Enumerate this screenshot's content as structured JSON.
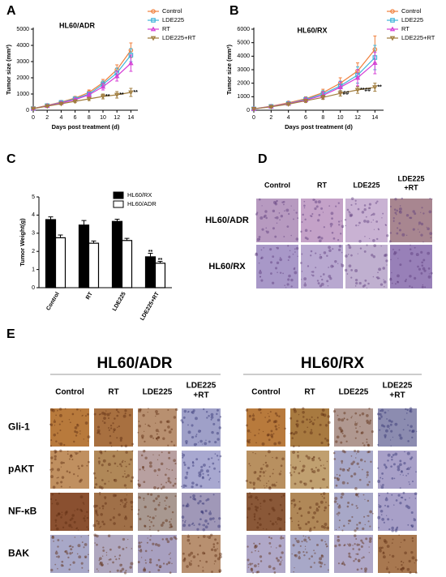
{
  "chart_data": [
    {
      "type": "line",
      "panel_label": "A",
      "title": "HL60/ADR",
      "x_label": "Days post  treatment (d)",
      "y_label": "Tumor size (mm³)",
      "x": [
        0,
        2,
        4,
        6,
        8,
        10,
        12,
        14
      ],
      "xlim": [
        0,
        15
      ],
      "xticks": [
        0,
        2,
        4,
        6,
        8,
        10,
        12,
        14
      ],
      "ylim": [
        0,
        5000
      ],
      "yticks": [
        0,
        1000,
        2000,
        3000,
        4000,
        5000
      ],
      "legend": "right",
      "series": [
        {
          "name": "Control",
          "color": "#f07f3c",
          "marker": "circle",
          "values": [
            100,
            300,
            500,
            750,
            1100,
            1700,
            2500,
            3700
          ],
          "errors": [
            20,
            50,
            80,
            100,
            150,
            200,
            300,
            450
          ]
        },
        {
          "name": "LDE225",
          "color": "#3fb3d9",
          "marker": "square",
          "values": [
            100,
            280,
            480,
            700,
            1000,
            1600,
            2300,
            3400
          ],
          "errors": [
            20,
            50,
            70,
            100,
            130,
            200,
            300,
            400
          ]
        },
        {
          "name": "RT",
          "color": "#d63fd6",
          "marker": "triangle-up",
          "values": [
            100,
            270,
            450,
            650,
            950,
            1450,
            2100,
            2900
          ],
          "errors": [
            20,
            40,
            70,
            90,
            120,
            200,
            300,
            500
          ]
        },
        {
          "name": "LDE225+RT",
          "color": "#a07c3c",
          "marker": "triangle-down",
          "values": [
            100,
            250,
            400,
            550,
            700,
            850,
            950,
            1100
          ],
          "errors": [
            20,
            40,
            60,
            80,
            100,
            150,
            200,
            250
          ]
        }
      ],
      "annotations": [
        {
          "x": 10,
          "y": 850,
          "text": "**"
        },
        {
          "x": 12,
          "y": 950,
          "text": "**"
        },
        {
          "x": 14,
          "y": 1100,
          "text": "**"
        }
      ]
    },
    {
      "type": "line",
      "panel_label": "B",
      "title": "HL60/RX",
      "x_label": "Days post  treatment (d)",
      "y_label": "Tumor size (mm³)",
      "x": [
        0,
        2,
        4,
        6,
        8,
        10,
        12,
        14
      ],
      "xlim": [
        0,
        15
      ],
      "xticks": [
        0,
        2,
        4,
        6,
        8,
        10,
        12,
        14
      ],
      "ylim": [
        0,
        6000
      ],
      "yticks": [
        0,
        1000,
        2000,
        3000,
        4000,
        5000,
        6000
      ],
      "legend": "right",
      "series": [
        {
          "name": "Control",
          "color": "#f07f3c",
          "marker": "circle",
          "values": [
            100,
            300,
            550,
            850,
            1300,
            2000,
            2900,
            4500
          ],
          "errors": [
            20,
            60,
            100,
            150,
            250,
            400,
            600,
            1000
          ]
        },
        {
          "name": "LDE225",
          "color": "#3fb3d9",
          "marker": "square",
          "values": [
            100,
            280,
            500,
            800,
            1200,
            1800,
            2600,
            3900
          ],
          "errors": [
            20,
            60,
            100,
            150,
            250,
            350,
            600,
            900
          ]
        },
        {
          "name": "RT",
          "color": "#d63fd6",
          "marker": "triangle-up",
          "values": [
            100,
            270,
            480,
            750,
            1100,
            1700,
            2400,
            3500
          ],
          "errors": [
            20,
            50,
            100,
            150,
            250,
            400,
            600,
            800
          ]
        },
        {
          "name": "LDE225+RT",
          "color": "#a07c3c",
          "marker": "triangle-down",
          "values": [
            100,
            250,
            450,
            700,
            950,
            1250,
            1500,
            1700
          ],
          "errors": [
            20,
            50,
            80,
            120,
            150,
            200,
            250,
            300
          ]
        }
      ],
      "annotations": [
        {
          "x": 10,
          "y": 1250,
          "text": "##"
        },
        {
          "x": 12,
          "y": 1500,
          "text": "**##"
        },
        {
          "x": 14,
          "y": 1700,
          "text": "**"
        }
      ]
    },
    {
      "type": "bar",
      "panel_label": "C",
      "y_label": "Tumor Weight(g)",
      "categories": [
        "Control",
        "RT",
        "LDE225",
        "LDE225+RT"
      ],
      "ylim": [
        0,
        5
      ],
      "yticks": [
        0,
        1,
        2,
        3,
        4,
        5
      ],
      "legend": "upper right",
      "series": [
        {
          "name": "HL60/RX",
          "color": "#000000",
          "values": [
            3.75,
            3.45,
            3.65,
            1.7
          ],
          "errors": [
            0.15,
            0.25,
            0.12,
            0.2
          ]
        },
        {
          "name": "HL60/ADR",
          "color": "#ffffff",
          "values": [
            2.75,
            2.45,
            2.6,
            1.35
          ],
          "errors": [
            0.15,
            0.12,
            0.12,
            0.1
          ]
        }
      ],
      "annotations": [
        {
          "x": "LDE225+RT",
          "series": "HL60/RX",
          "y": 1.95,
          "text": "**"
        },
        {
          "x": "LDE225+RT",
          "series": "HL60/ADR",
          "y": 1.5,
          "text": "**"
        }
      ]
    }
  ],
  "panel_d": {
    "label": "D",
    "columns": [
      [
        "Control"
      ],
      [
        "RT"
      ],
      [
        "LDE225"
      ],
      [
        "LDE225",
        "+RT"
      ]
    ],
    "rows": [
      "HL60/ADR",
      "HL60/RX"
    ]
  },
  "panel_e": {
    "label": "E",
    "rows": [
      "Gli-1",
      "pAKT",
      "NF-κB",
      "BAK"
    ],
    "groups": [
      {
        "title": "HL60/ADR",
        "columns": [
          [
            "Control"
          ],
          [
            "RT"
          ],
          [
            "LDE225"
          ],
          [
            "LDE225",
            "+RT"
          ]
        ]
      },
      {
        "title": "HL60/RX",
        "columns": [
          [
            "Control"
          ],
          [
            "RT"
          ],
          [
            "LDE225"
          ],
          [
            "LDE225",
            "+RT"
          ]
        ]
      }
    ]
  }
}
